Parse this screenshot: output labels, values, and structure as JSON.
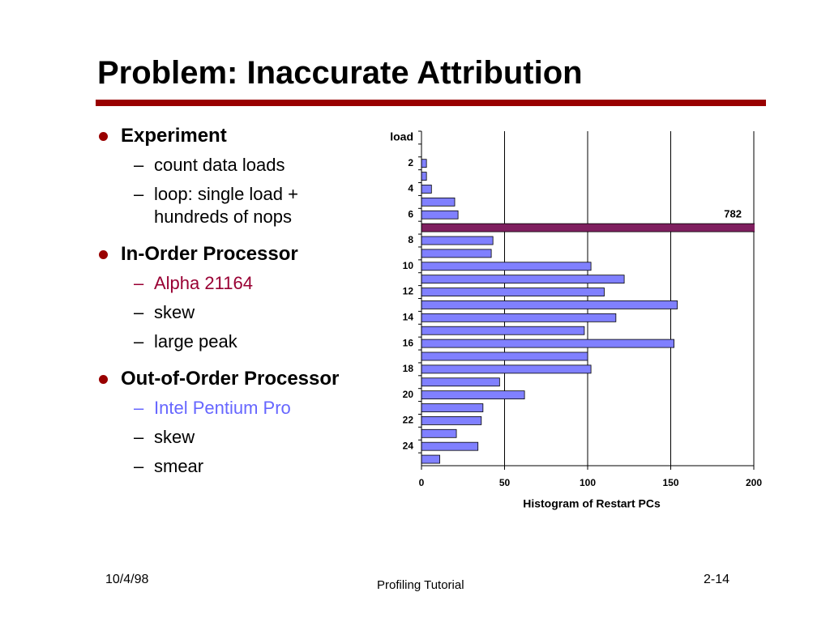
{
  "slide": {
    "title": "Problem: Inaccurate Attribution",
    "bullets": [
      {
        "text": "Experiment",
        "items": [
          {
            "text": "count data loads"
          },
          {
            "text": "loop: single load + hundreds of nops"
          }
        ]
      },
      {
        "text": "In-Order Processor",
        "items": [
          {
            "text": "Alpha 21164",
            "color": "#990033"
          },
          {
            "text": "skew"
          },
          {
            "text": "large peak"
          }
        ]
      },
      {
        "text": "Out-of-Order Processor",
        "items": [
          {
            "text": "Intel Pentium Pro",
            "color": "#6666ff"
          },
          {
            "text": "skew"
          },
          {
            "text": "smear"
          }
        ]
      }
    ],
    "footer": {
      "date": "10/4/98",
      "center": "Profiling Tutorial",
      "page": "2-14"
    }
  },
  "chart_data": {
    "type": "barh",
    "xlabel": "Histogram of Restart PCs",
    "categories": [
      "load",
      null,
      "2",
      null,
      "4",
      null,
      "6",
      null,
      "8",
      null,
      "10",
      null,
      "12",
      null,
      "14",
      null,
      "16",
      null,
      "18",
      null,
      "20",
      null,
      "22",
      null,
      "24",
      null
    ],
    "values": [
      0,
      0,
      3,
      3,
      6,
      20,
      22,
      782,
      43,
      42,
      102,
      122,
      110,
      154,
      117,
      98,
      152,
      100,
      102,
      47,
      62,
      37,
      36,
      21,
      34,
      11
    ],
    "value_labels": [
      null,
      null,
      null,
      null,
      null,
      null,
      null,
      "782",
      null,
      null,
      null,
      null,
      null,
      null,
      null,
      null,
      null,
      null,
      null,
      null,
      null,
      null,
      null,
      null,
      null,
      null
    ],
    "color": "#8080ff",
    "colors": [
      null,
      null,
      null,
      null,
      null,
      null,
      null,
      "#7f1f5f",
      null,
      null,
      null,
      null,
      null,
      null,
      null,
      null,
      null,
      null,
      null,
      null,
      null,
      null,
      null,
      null,
      null,
      null
    ],
    "xlim": [
      0,
      200
    ],
    "xticks": [
      0,
      50,
      100,
      150,
      200
    ],
    "grid": true
  }
}
